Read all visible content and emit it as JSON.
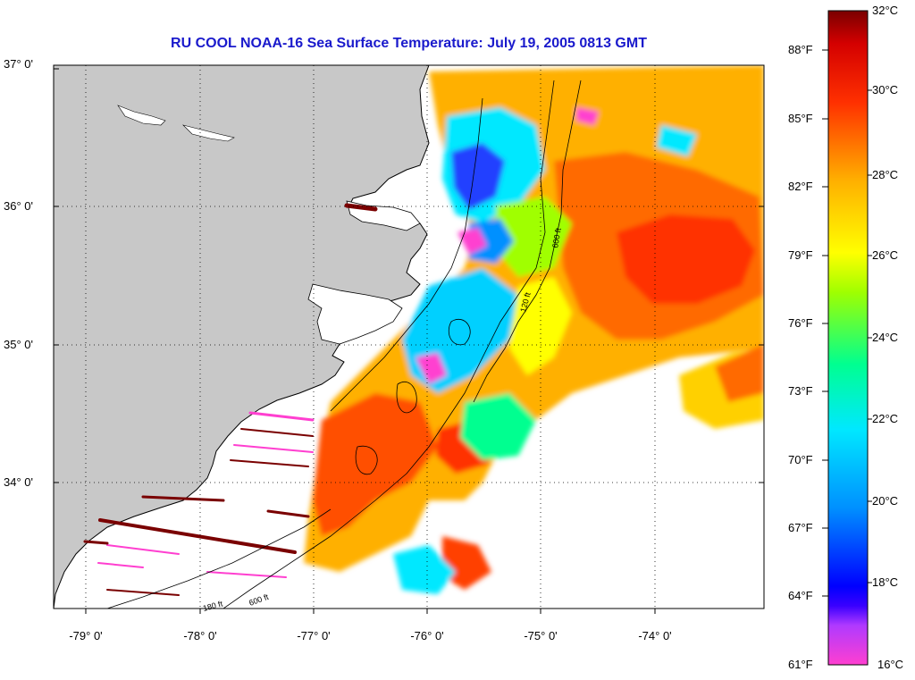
{
  "title": "RU COOL  NOAA-16  Sea Surface Temperature:  July 19, 2005 0813 GMT",
  "lat_labels": [
    "37° 0'",
    "36° 0'",
    "35° 0'",
    "34° 0'"
  ],
  "lon_labels": [
    "-79° 0'",
    "-78° 0'",
    "-77° 0'",
    "-76° 0'",
    "-75° 0'",
    "-74° 0'"
  ],
  "colorbar": {
    "fahrenheit": [
      "88°F",
      "85°F",
      "82°F",
      "79°F",
      "76°F",
      "73°F",
      "70°F",
      "67°F",
      "64°F",
      "61°F"
    ],
    "celsius": [
      "32°C",
      "30°C",
      "28°C",
      "26°C",
      "24°C",
      "22°C",
      "20°C",
      "18°C",
      "16°C"
    ],
    "colors": [
      "#ff3fd0",
      "#8a3aff",
      "#0000ff",
      "#0090ff",
      "#00e8ff",
      "#00ff90",
      "#a0ff00",
      "#ffff00",
      "#ffb000",
      "#ff6a00",
      "#ff1a00",
      "#c40000",
      "#7a0000"
    ]
  },
  "contour_labels": [
    "600 ft",
    "120 ft",
    "600 ft",
    "180 ft"
  ],
  "map_colors": {
    "land": "#c8c8c8",
    "water_nodata": "#ffffff"
  }
}
